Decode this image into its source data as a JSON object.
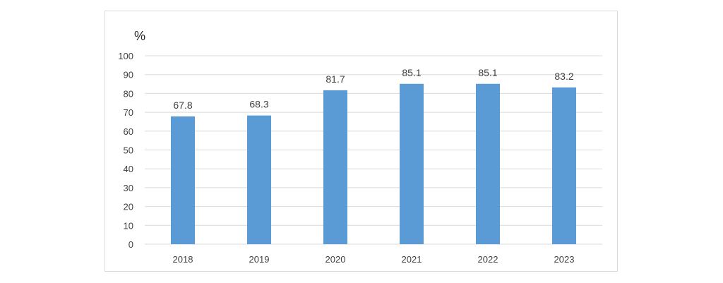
{
  "chart_data": {
    "type": "bar",
    "unit_label": "%",
    "categories": [
      "2018",
      "2019",
      "2020",
      "2021",
      "2022",
      "2023"
    ],
    "values": [
      67.8,
      68.3,
      81.7,
      85.1,
      85.1,
      83.2
    ],
    "data_labels": [
      "67.8",
      "68.3",
      "81.7",
      "85.1",
      "85.1",
      "83.2"
    ],
    "yticks": [
      "0",
      "10",
      "20",
      "30",
      "40",
      "50",
      "60",
      "70",
      "80",
      "90",
      "100"
    ],
    "ylim": [
      0,
      100
    ],
    "grid": true,
    "bar_color": "#5b9bd5",
    "grid_color": "#d9d9d9"
  }
}
